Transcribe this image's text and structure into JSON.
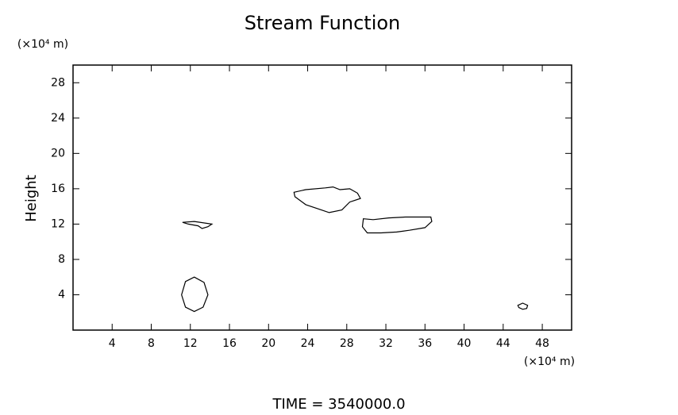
{
  "chart_data": {
    "type": "contour",
    "title": "Stream Function",
    "ylabel": "Height",
    "y_unit": "(×10⁴ m)",
    "x_unit": "(×10⁴ m)",
    "annotation": "TIME = 3540000.0",
    "xlim": [
      0,
      51
    ],
    "ylim": [
      0,
      30
    ],
    "xticks": [
      4,
      8,
      12,
      16,
      20,
      24,
      28,
      32,
      36,
      40,
      44,
      48
    ],
    "yticks": [
      4,
      8,
      12,
      16,
      20,
      24,
      28
    ],
    "color": "#000000",
    "contours": [
      {
        "x": [
          12.4,
          13.4,
          13.8,
          13.3,
          12.4,
          11.5,
          11.1,
          11.5
        ],
        "y": [
          6.0,
          5.4,
          4.0,
          2.6,
          2.1,
          2.6,
          4.0,
          5.5
        ]
      },
      {
        "x": [
          46.0,
          46.5,
          46.4,
          46.0,
          45.6,
          45.5
        ],
        "y": [
          3.05,
          2.8,
          2.45,
          2.35,
          2.55,
          2.8
        ]
      },
      {
        "x": [
          11.2,
          12.4,
          14.2,
          13.8,
          13.2,
          12.8,
          11.8
        ],
        "y": [
          12.2,
          12.3,
          12.0,
          11.7,
          11.5,
          11.8,
          12.0
        ]
      },
      {
        "x": [
          22.6,
          23.8,
          25.8,
          26.6,
          27.3,
          28.3,
          29.1,
          29.4,
          28.3,
          27.5,
          26.2,
          25.4,
          23.8,
          22.7
        ],
        "y": [
          15.6,
          15.9,
          16.1,
          16.2,
          15.9,
          16.0,
          15.5,
          14.9,
          14.5,
          13.6,
          13.3,
          13.6,
          14.2,
          15.1
        ]
      },
      {
        "x": [
          29.7,
          30.7,
          32.3,
          34.0,
          35.6,
          36.6,
          36.7,
          36.0,
          34.4,
          33.1,
          31.5,
          30.1,
          29.6
        ],
        "y": [
          12.6,
          12.5,
          12.7,
          12.8,
          12.8,
          12.8,
          12.3,
          11.6,
          11.3,
          11.1,
          11.0,
          11.0,
          11.7
        ]
      }
    ]
  }
}
